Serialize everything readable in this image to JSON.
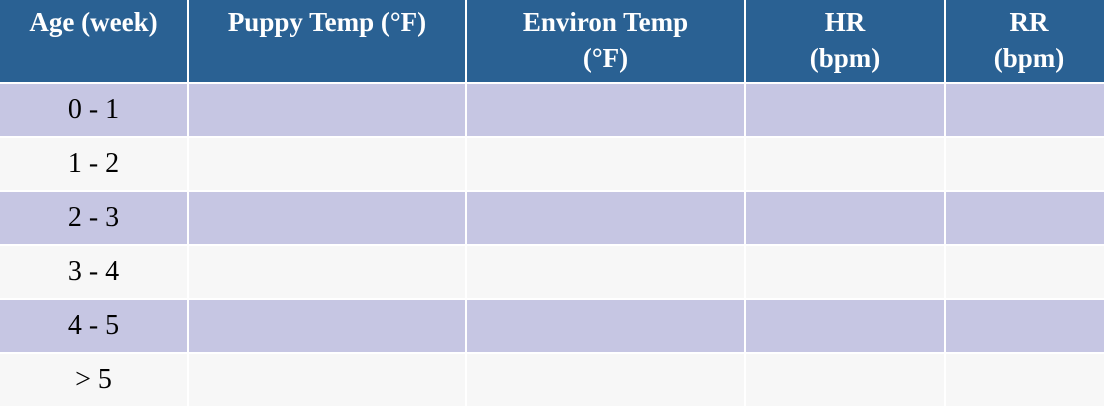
{
  "table": {
    "headers": [
      "Age (week)",
      "Puppy Temp (°F)",
      "Environ Temp\n(°F)",
      "HR\n(bpm)",
      "RR\n(bpm)"
    ],
    "rows": [
      [
        "0 - 1",
        "",
        "",
        "",
        ""
      ],
      [
        "1 - 2",
        "",
        "",
        "",
        ""
      ],
      [
        "2 - 3",
        "",
        "",
        "",
        ""
      ],
      [
        "3 - 4",
        "",
        "",
        "",
        ""
      ],
      [
        "4 - 5",
        "",
        "",
        "",
        ""
      ],
      [
        "> 5",
        "",
        "",
        "",
        ""
      ]
    ],
    "colors": {
      "header_bg": "#2a6193",
      "header_text": "#ffffff",
      "row_odd_bg": "#c6c6e3",
      "row_even_bg": "#f7f7f7"
    }
  }
}
